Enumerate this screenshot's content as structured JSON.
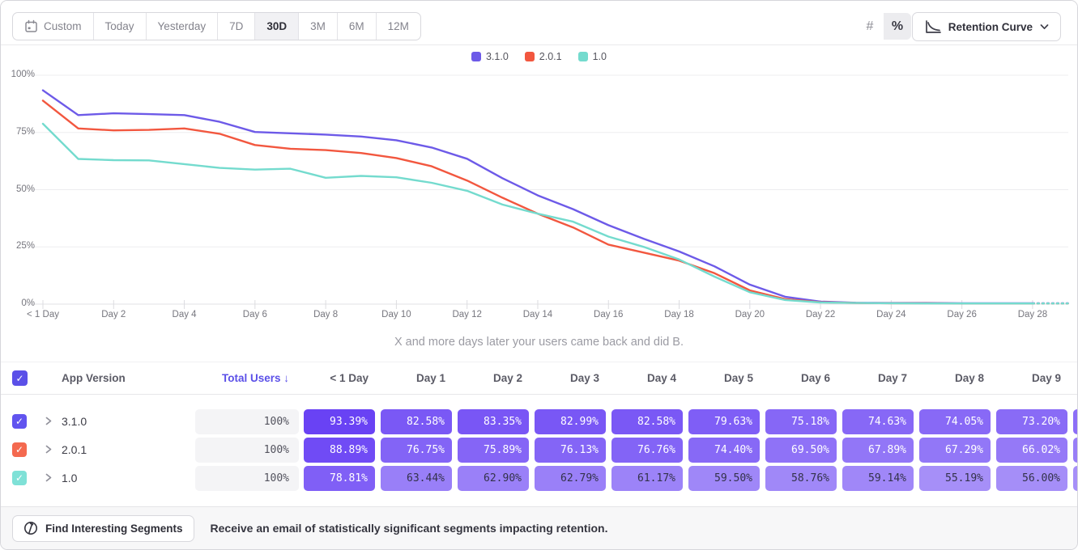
{
  "toolbar": {
    "ranges": [
      {
        "label": "Custom",
        "selected": false,
        "calendar_icon": true
      },
      {
        "label": "Today",
        "selected": false
      },
      {
        "label": "Yesterday",
        "selected": false
      },
      {
        "label": "7D",
        "selected": false
      },
      {
        "label": "30D",
        "selected": true
      },
      {
        "label": "3M",
        "selected": false
      },
      {
        "label": "6M",
        "selected": false
      },
      {
        "label": "12M",
        "selected": false
      }
    ],
    "format_toggle": [
      {
        "label": "#",
        "name": "absolute",
        "selected": false
      },
      {
        "label": "%",
        "name": "percent",
        "selected": true
      }
    ],
    "chart_type_label": "Retention Curve"
  },
  "colors": {
    "accent": "#5b50e8",
    "cell_text_light": "#ffffff",
    "cell_text_dark": "#33324a"
  },
  "chart_data": {
    "type": "line",
    "caption": "X and more days later your users came back and did B.",
    "ylim": [
      0,
      100
    ],
    "ytick_labels": [
      "0%",
      "25%",
      "50%",
      "75%",
      "100%"
    ],
    "ytick_values": [
      0,
      25,
      50,
      75,
      100
    ],
    "x_tick_labels": [
      "< 1 Day",
      "Day 2",
      "Day 4",
      "Day 6",
      "Day 8",
      "Day 10",
      "Day 12",
      "Day 14",
      "Day 16",
      "Day 18",
      "Day 20",
      "Day 22",
      "Day 24",
      "Day 26",
      "Day 28"
    ],
    "x_tick_days": [
      0,
      2,
      4,
      6,
      8,
      10,
      12,
      14,
      16,
      18,
      20,
      22,
      24,
      26,
      28
    ],
    "grid": true,
    "legend_position": "top-center",
    "incomplete_after_day": 28,
    "series": [
      {
        "name": "3.1.0",
        "color": "#6d5ae8",
        "values": [
          93.39,
          82.58,
          83.35,
          82.99,
          82.58,
          79.63,
          75.18,
          74.63,
          74.05,
          73.2,
          71.6,
          68.4,
          63.5,
          55.0,
          47.5,
          41.5,
          34.5,
          28.5,
          23.0,
          16.5,
          8.5,
          3.2,
          1.1,
          0.6,
          0.5,
          0.5,
          0.4,
          0.4,
          0.4,
          0.4
        ]
      },
      {
        "name": "2.0.1",
        "color": "#f2573f",
        "values": [
          88.89,
          76.75,
          75.89,
          76.13,
          76.76,
          74.4,
          69.5,
          67.89,
          67.29,
          66.02,
          63.8,
          60.2,
          54.0,
          46.5,
          39.5,
          33.5,
          26.0,
          22.5,
          19.0,
          13.5,
          6.0,
          2.2,
          0.8,
          0.5,
          0.4,
          0.4,
          0.3,
          0.3,
          0.3,
          0.3
        ]
      },
      {
        "name": "1.0",
        "color": "#74dbce",
        "values": [
          78.81,
          63.44,
          62.9,
          62.79,
          61.17,
          59.5,
          58.76,
          59.14,
          55.19,
          56.0,
          55.4,
          53.0,
          49.5,
          43.5,
          39.5,
          36.0,
          29.5,
          25.0,
          19.5,
          12.0,
          5.2,
          1.8,
          0.7,
          0.5,
          0.4,
          0.3,
          0.3,
          0.3,
          0.3,
          0.3
        ]
      }
    ]
  },
  "table": {
    "version_header": "App Version",
    "sort_header": "Total Users",
    "sort_arrow": "↓",
    "day_columns": [
      "< 1 Day",
      "Day 1",
      "Day 2",
      "Day 3",
      "Day 4",
      "Day 5",
      "Day 6",
      "Day 7",
      "Day 8",
      "Day 9"
    ],
    "rows": [
      {
        "version": "3.1.0",
        "checkbox_color": "#6154ef",
        "checked": true,
        "total": "100%",
        "series_index": 0
      },
      {
        "version": "2.0.1",
        "checkbox_color": "#f4694f",
        "checked": true,
        "total": "100%",
        "series_index": 1
      },
      {
        "version": "1.0",
        "checkbox_color": "#7fe1d7",
        "checked": true,
        "total": "100%",
        "series_index": 2
      }
    ]
  },
  "footer": {
    "button_label": "Find Interesting Segments",
    "message": "Receive an email of statistically significant segments impacting retention."
  }
}
